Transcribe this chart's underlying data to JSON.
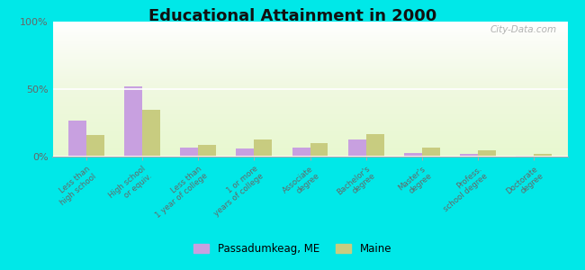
{
  "title": "Educational Attainment in 2000",
  "categories": [
    "Less than\nhigh school",
    "High school\nor equiv.",
    "Less than\n1 year of college",
    "1 or more\nyears of college",
    "Associate\ndegree",
    "Bachelor's\ndegree",
    "Master's\ndegree",
    "Profess.\nschool degree",
    "Doctorate\ndegree"
  ],
  "passadumkeag": [
    27,
    52,
    7,
    6,
    7,
    13,
    3,
    2,
    1
  ],
  "maine": [
    16,
    35,
    9,
    13,
    10,
    17,
    7,
    5,
    2
  ],
  "color_pass": "#c8a0e0",
  "color_maine": "#c8cc80",
  "yticks": [
    0,
    50,
    100
  ],
  "ytick_labels": [
    "0%",
    "50%",
    "100%"
  ],
  "ylim": [
    0,
    100
  ],
  "bg_top": "#f0f8e8",
  "bg_bottom": "#d8f0c0",
  "outer_background": "#00e8e8",
  "watermark": "City-Data.com",
  "legend_pass": "Passadumkeag, ME",
  "legend_maine": "Maine",
  "bar_width": 0.32
}
